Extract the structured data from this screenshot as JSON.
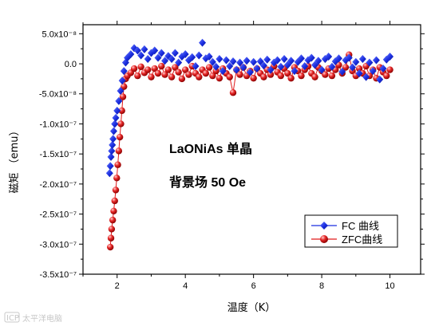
{
  "chart_data": {
    "type": "scatter",
    "xlabel": "温度（K）",
    "ylabel": "磁矩 （emu）",
    "xlim": [
      1,
      10.9
    ],
    "ylim": [
      -3.5e-07,
      6.5e-08
    ],
    "xticks": [
      2,
      4,
      6,
      8,
      10
    ],
    "xtick_labels": [
      "2",
      "4",
      "6",
      "8",
      "10"
    ],
    "yticks": [
      5e-08,
      0,
      -5e-08,
      -1e-07,
      -1.5e-07,
      -2e-07,
      -2.5e-07,
      -3e-07,
      -3.5e-07
    ],
    "ytick_labels": [
      "5.0x10⁻⁸",
      "0.0",
      "-5.0x10⁻⁸",
      "-1.0x10⁻⁷",
      "-1.5x10⁻⁷",
      "-2.0x10⁻⁷",
      "-2.5x10⁻⁷",
      "-3.0x10⁻⁷",
      "-3.5x10⁻⁷"
    ],
    "annotations": [
      "LaONiAs 单晶",
      "背景场 50 Oe"
    ],
    "legend_position": "lower-right",
    "grid": false,
    "series": [
      {
        "name": "FC 曲线",
        "color": "#1a2de0",
        "marker": "diamond",
        "line": false,
        "points": [
          [
            1.78,
            -1.82e-07
          ],
          [
            1.8,
            -1.7e-07
          ],
          [
            1.82,
            -1.55e-07
          ],
          [
            1.84,
            -1.45e-07
          ],
          [
            1.86,
            -1.35e-07
          ],
          [
            1.88,
            -1.25e-07
          ],
          [
            1.9,
            -1.12e-07
          ],
          [
            1.93,
            -1e-07
          ],
          [
            1.96,
            -9e-08
          ],
          [
            2.0,
            -7.8e-08
          ],
          [
            2.05,
            -6.2e-08
          ],
          [
            2.1,
            -4.5e-08
          ],
          [
            2.15,
            -2.8e-08
          ],
          [
            2.2,
            -1.2e-08
          ],
          [
            2.25,
            2e-09
          ],
          [
            2.3,
            1e-08
          ],
          [
            2.4,
            1.6e-08
          ],
          [
            2.5,
            2.6e-08
          ],
          [
            2.6,
            2.2e-08
          ],
          [
            2.7,
            1.4e-08
          ],
          [
            2.8,
            2.4e-08
          ],
          [
            2.9,
            8e-09
          ],
          [
            3.0,
            1.8e-08
          ],
          [
            3.1,
            2.2e-08
          ],
          [
            3.2,
            1e-08
          ],
          [
            3.3,
            1.8e-08
          ],
          [
            3.4,
            5e-09
          ],
          [
            3.5,
            1.3e-08
          ],
          [
            3.6,
            8e-09
          ],
          [
            3.7,
            1.8e-08
          ],
          [
            3.8,
            2e-09
          ],
          [
            3.9,
            1.2e-08
          ],
          [
            4.0,
            1.6e-08
          ],
          [
            4.1,
            6e-09
          ],
          [
            4.2,
            1.1e-08
          ],
          [
            4.3,
            -4e-09
          ],
          [
            4.4,
            1.4e-08
          ],
          [
            4.5,
            3.5e-08
          ],
          [
            4.6,
            9e-09
          ],
          [
            4.7,
            1.2e-08
          ],
          [
            4.8,
            3e-09
          ],
          [
            4.9,
            -5e-09
          ],
          [
            5.0,
            8e-09
          ],
          [
            5.1,
            -1.2e-08
          ],
          [
            5.2,
            6e-09
          ],
          [
            5.3,
            -4e-09
          ],
          [
            5.4,
            4e-09
          ],
          [
            5.5,
            -1e-08
          ],
          [
            5.6,
            2e-09
          ],
          [
            5.7,
            -6e-09
          ],
          [
            5.8,
            5e-09
          ],
          [
            5.9,
            -1.4e-08
          ],
          [
            6.0,
            3e-09
          ],
          [
            6.1,
            -8e-09
          ],
          [
            6.2,
            4e-09
          ],
          [
            6.3,
            -3e-09
          ],
          [
            6.4,
            7e-09
          ],
          [
            6.5,
            -1e-08
          ],
          [
            6.6,
            2e-09
          ],
          [
            6.7,
            6e-09
          ],
          [
            6.8,
            -5e-09
          ],
          [
            6.9,
            8e-09
          ],
          [
            7.0,
            -2e-09
          ],
          [
            7.1,
            5e-09
          ],
          [
            7.2,
            -1.2e-08
          ],
          [
            7.3,
            3e-09
          ],
          [
            7.4,
            9e-09
          ],
          [
            7.5,
            -4e-09
          ],
          [
            7.6,
            6e-09
          ],
          [
            7.7,
            1e-08
          ],
          [
            7.8,
            -2e-09
          ],
          [
            7.9,
            5e-09
          ],
          [
            8.0,
            -1e-08
          ],
          [
            8.1,
            8e-09
          ],
          [
            8.2,
            1.2e-08
          ],
          [
            8.3,
            -5e-09
          ],
          [
            8.4,
            4e-09
          ],
          [
            8.5,
            9e-09
          ],
          [
            8.6,
            -1.3e-08
          ],
          [
            8.7,
            6e-09
          ],
          [
            8.8,
            1e-08
          ],
          [
            8.9,
            -6e-09
          ],
          [
            9.0,
            3e-09
          ],
          [
            9.1,
            -1.6e-08
          ],
          [
            9.2,
            8e-09
          ],
          [
            9.3,
            -2.2e-08
          ],
          [
            9.4,
            2e-09
          ],
          [
            9.5,
            -1.2e-08
          ],
          [
            9.6,
            6e-09
          ],
          [
            9.7,
            -2.6e-08
          ],
          [
            9.8,
            -8e-09
          ],
          [
            9.9,
            7e-09
          ],
          [
            10.0,
            1.2e-08
          ]
        ]
      },
      {
        "name": "ZFC曲线",
        "color": "#e01a1a",
        "marker": "sphere",
        "line": true,
        "points": [
          [
            1.8,
            -3.05e-07
          ],
          [
            1.82,
            -2.9e-07
          ],
          [
            1.84,
            -2.75e-07
          ],
          [
            1.87,
            -2.6e-07
          ],
          [
            1.9,
            -2.45e-07
          ],
          [
            1.93,
            -2.28e-07
          ],
          [
            1.96,
            -2.1e-07
          ],
          [
            1.99,
            -1.9e-07
          ],
          [
            2.02,
            -1.68e-07
          ],
          [
            2.05,
            -1.45e-07
          ],
          [
            2.08,
            -1.22e-07
          ],
          [
            2.11,
            -1e-07
          ],
          [
            2.14,
            -7.8e-08
          ],
          [
            2.17,
            -5.5e-08
          ],
          [
            2.2,
            -3.8e-08
          ],
          [
            2.25,
            -2.5e-08
          ],
          [
            2.3,
            -2e-08
          ],
          [
            2.4,
            -1.5e-08
          ],
          [
            2.5,
            -8e-09
          ],
          [
            2.6,
            -2e-08
          ],
          [
            2.7,
            -5e-09
          ],
          [
            2.8,
            -1.5e-08
          ],
          [
            2.9,
            -1e-08
          ],
          [
            3.0,
            -2.2e-08
          ],
          [
            3.1,
            -8e-09
          ],
          [
            3.2,
            -1.6e-08
          ],
          [
            3.3,
            -4e-09
          ],
          [
            3.4,
            -1.8e-08
          ],
          [
            3.5,
            -1e-08
          ],
          [
            3.6,
            -2.2e-08
          ],
          [
            3.7,
            -6e-09
          ],
          [
            3.8,
            -1.4e-08
          ],
          [
            3.9,
            -2.5e-08
          ],
          [
            4.0,
            -1e-08
          ],
          [
            4.1,
            -1.8e-08
          ],
          [
            4.2,
            -4e-09
          ],
          [
            4.3,
            -1.6e-08
          ],
          [
            4.4,
            -2.2e-08
          ],
          [
            4.5,
            -1e-08
          ],
          [
            4.6,
            -1.6e-08
          ],
          [
            4.7,
            -6e-09
          ],
          [
            4.8,
            -2e-08
          ],
          [
            4.9,
            -1.2e-08
          ],
          [
            5.0,
            -2.4e-08
          ],
          [
            5.1,
            -8e-09
          ],
          [
            5.2,
            -1.6e-08
          ],
          [
            5.3,
            -2.2e-08
          ],
          [
            5.4,
            -4.8e-08
          ],
          [
            5.5,
            -1e-08
          ],
          [
            5.6,
            -1.8e-08
          ],
          [
            5.7,
            -6e-09
          ],
          [
            5.8,
            -2e-08
          ],
          [
            5.9,
            -1.2e-08
          ],
          [
            6.0,
            -2.4e-08
          ],
          [
            6.1,
            -8e-09
          ],
          [
            6.2,
            -1.6e-08
          ],
          [
            6.3,
            -2.2e-08
          ],
          [
            6.4,
            -1e-08
          ],
          [
            6.5,
            -1.8e-08
          ],
          [
            6.6,
            -4e-09
          ],
          [
            6.7,
            -1.4e-08
          ],
          [
            6.8,
            -2e-08
          ],
          [
            6.9,
            -8e-09
          ],
          [
            7.0,
            -1.6e-08
          ],
          [
            7.1,
            -2.4e-08
          ],
          [
            7.2,
            -6e-09
          ],
          [
            7.3,
            -1.2e-08
          ],
          [
            7.4,
            -2e-08
          ],
          [
            7.5,
            -1e-08
          ],
          [
            7.6,
            -4e-09
          ],
          [
            7.7,
            -1.6e-08
          ],
          [
            7.8,
            -2.2e-08
          ],
          [
            7.9,
            -6e-09
          ],
          [
            8.0,
            -1.2e-08
          ],
          [
            8.1,
            -1.8e-08
          ],
          [
            8.2,
            -8e-09
          ],
          [
            8.3,
            -2e-08
          ],
          [
            8.4,
            -1e-08
          ],
          [
            8.5,
            -2e-09
          ],
          [
            8.6,
            -1.6e-08
          ],
          [
            8.7,
            -6e-09
          ],
          [
            8.8,
            1.5e-08
          ],
          [
            8.9,
            -1.2e-08
          ],
          [
            9.0,
            -2e-08
          ],
          [
            9.1,
            -8e-09
          ],
          [
            9.2,
            -1.6e-08
          ],
          [
            9.3,
            -4e-09
          ],
          [
            9.4,
            -2e-08
          ],
          [
            9.5,
            -1e-08
          ],
          [
            9.6,
            -2.4e-08
          ],
          [
            9.7,
            -6e-09
          ],
          [
            9.8,
            -1.4e-08
          ],
          [
            9.9,
            -2e-08
          ],
          [
            10.0,
            -1e-08
          ]
        ]
      }
    ]
  },
  "watermark": {
    "badge": "ICP",
    "text": "太平洋电脑"
  }
}
